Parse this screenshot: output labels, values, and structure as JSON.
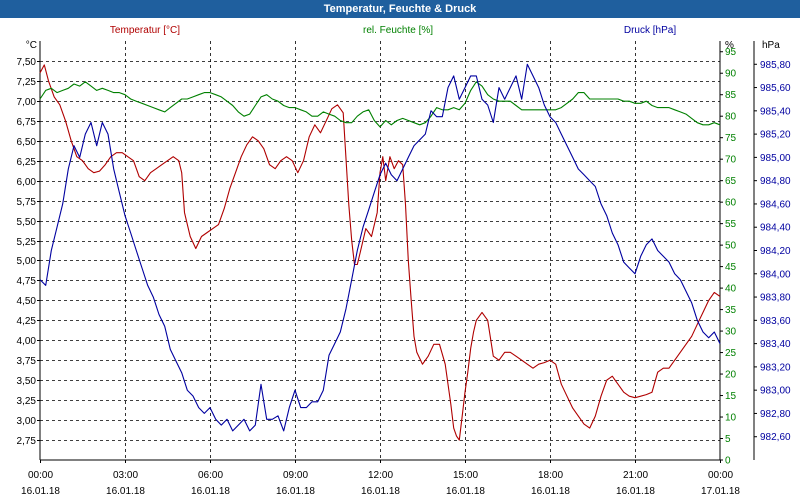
{
  "window": {
    "title": "Temperatur, Feuchte & Druck"
  },
  "colors": {
    "title_bg": "#1f5f9e",
    "temperature": "#b00000",
    "humidity": "#008000",
    "pressure": "#0000a0",
    "grid": "#000000",
    "axis_text": "#000000"
  },
  "chart_data": {
    "type": "line",
    "title": "Temperatur, Feuchte & Druck",
    "x_ticks": [
      {
        "time": "00:00",
        "date": "16.01.18"
      },
      {
        "time": "03:00",
        "date": "16.01.18"
      },
      {
        "time": "06:00",
        "date": "16.01.18"
      },
      {
        "time": "09:00",
        "date": "16.01.18"
      },
      {
        "time": "12:00",
        "date": "16.01.18"
      },
      {
        "time": "15:00",
        "date": "16.01.18"
      },
      {
        "time": "18:00",
        "date": "16.01.18"
      },
      {
        "time": "21:00",
        "date": "16.01.18"
      },
      {
        "time": "00:00",
        "date": "17.01.18"
      }
    ],
    "x_range_hours": [
      0,
      24
    ],
    "y_left": {
      "unit": "°C",
      "range": [
        2.5,
        7.75
      ],
      "ticks": [
        "7,50",
        "7,25",
        "7,00",
        "6,75",
        "6,50",
        "6,25",
        "6,00",
        "5,75",
        "5,50",
        "5,25",
        "5,00",
        "4,75",
        "4,50",
        "4,25",
        "4,00",
        "3,75",
        "3,50",
        "3,25",
        "3,00",
        "2,75"
      ]
    },
    "y_humidity": {
      "unit": "%",
      "range": [
        0,
        97.5
      ],
      "ticks": [
        "95",
        "90",
        "85",
        "80",
        "75",
        "70",
        "65",
        "60",
        "55",
        "50",
        "45",
        "40",
        "35",
        "30",
        "25",
        "20",
        "15",
        "10",
        "5",
        "0"
      ]
    },
    "y_pressure": {
      "unit": "hPa",
      "range": [
        982.4,
        986.0
      ],
      "ticks": [
        "985,80",
        "985,60",
        "985,40",
        "985,20",
        "985,00",
        "984,80",
        "984,60",
        "984,40",
        "984,20",
        "984,00",
        "983,80",
        "983,60",
        "983,40",
        "983,20",
        "983,00",
        "982,80",
        "982,60"
      ]
    },
    "series": [
      {
        "name": "Temperatur [°C]",
        "color": "#b00000",
        "axis": "left",
        "x": [
          0,
          0.15,
          0.3,
          0.5,
          0.7,
          0.9,
          1.1,
          1.3,
          1.5,
          1.7,
          1.9,
          2.1,
          2.3,
          2.5,
          2.7,
          2.9,
          3.1,
          3.3,
          3.5,
          3.7,
          3.9,
          4.1,
          4.3,
          4.5,
          4.7,
          4.9,
          5.0,
          5.1,
          5.3,
          5.5,
          5.7,
          5.9,
          6.1,
          6.3,
          6.5,
          6.7,
          6.9,
          7.1,
          7.3,
          7.5,
          7.7,
          7.9,
          8.1,
          8.3,
          8.5,
          8.7,
          8.9,
          9.1,
          9.3,
          9.5,
          9.7,
          9.9,
          10.1,
          10.3,
          10.5,
          10.7,
          10.9,
          11.0,
          11.1,
          11.2,
          11.3,
          11.5,
          11.7,
          11.9,
          12.0,
          12.1,
          12.2,
          12.35,
          12.5,
          12.65,
          12.8,
          12.9,
          13.0,
          13.1,
          13.2,
          13.3,
          13.5,
          13.7,
          13.9,
          14.1,
          14.3,
          14.5,
          14.6,
          14.7,
          14.8,
          14.9,
          15.0,
          15.1,
          15.2,
          15.3,
          15.4,
          15.6,
          15.8,
          16.0,
          16.2,
          16.4,
          16.6,
          16.8,
          17.0,
          17.2,
          17.4,
          17.6,
          17.8,
          18.0,
          18.2,
          18.4,
          18.6,
          18.8,
          19.0,
          19.2,
          19.4,
          19.6,
          19.8,
          20.0,
          20.2,
          20.4,
          20.6,
          20.8,
          21.0,
          21.2,
          21.4,
          21.6,
          21.8,
          22.0,
          22.2,
          22.4,
          22.6,
          22.8,
          23.0,
          23.2,
          23.4,
          23.6,
          23.8,
          24.0
        ],
        "values": [
          7.35,
          7.45,
          7.25,
          7.05,
          6.95,
          6.75,
          6.5,
          6.3,
          6.25,
          6.15,
          6.1,
          6.12,
          6.2,
          6.3,
          6.35,
          6.35,
          6.3,
          6.25,
          6.05,
          6.0,
          6.1,
          6.15,
          6.2,
          6.25,
          6.3,
          6.25,
          6.1,
          5.6,
          5.3,
          5.15,
          5.3,
          5.35,
          5.4,
          5.45,
          5.65,
          5.9,
          6.1,
          6.3,
          6.45,
          6.55,
          6.5,
          6.4,
          6.2,
          6.15,
          6.25,
          6.3,
          6.25,
          6.1,
          6.25,
          6.55,
          6.7,
          6.6,
          6.75,
          6.9,
          6.95,
          6.85,
          5.7,
          5.25,
          4.95,
          4.95,
          5.1,
          5.4,
          5.3,
          5.6,
          6.1,
          6.3,
          6.0,
          6.3,
          6.15,
          6.25,
          6.2,
          5.7,
          5.0,
          4.5,
          4.05,
          3.85,
          3.7,
          3.8,
          3.95,
          3.95,
          3.7,
          3.2,
          2.9,
          2.8,
          2.75,
          3.05,
          3.35,
          3.6,
          3.9,
          4.1,
          4.25,
          4.35,
          4.25,
          3.8,
          3.75,
          3.85,
          3.85,
          3.8,
          3.75,
          3.7,
          3.65,
          3.7,
          3.72,
          3.75,
          3.7,
          3.45,
          3.3,
          3.15,
          3.05,
          2.95,
          2.9,
          3.05,
          3.3,
          3.5,
          3.55,
          3.45,
          3.35,
          3.3,
          3.28,
          3.3,
          3.32,
          3.35,
          3.6,
          3.65,
          3.65,
          3.75,
          3.85,
          3.95,
          4.05,
          4.2,
          4.35,
          4.5,
          4.6,
          4.55
        ]
      },
      {
        "name": "rel. Feuchte [%]",
        "color": "#008000",
        "axis": "humidity",
        "x": [
          0,
          0.2,
          0.4,
          0.6,
          0.8,
          1.0,
          1.2,
          1.4,
          1.6,
          1.8,
          2.0,
          2.2,
          2.4,
          2.6,
          2.8,
          3.0,
          3.2,
          3.4,
          3.6,
          3.8,
          4.0,
          4.2,
          4.4,
          4.6,
          4.8,
          5.0,
          5.2,
          5.4,
          5.6,
          5.8,
          6.0,
          6.2,
          6.4,
          6.6,
          6.8,
          7.0,
          7.2,
          7.4,
          7.6,
          7.8,
          8.0,
          8.2,
          8.4,
          8.6,
          8.8,
          9.0,
          9.2,
          9.4,
          9.6,
          9.8,
          10.0,
          10.2,
          10.4,
          10.6,
          10.8,
          11.0,
          11.2,
          11.4,
          11.6,
          11.8,
          12.0,
          12.2,
          12.4,
          12.6,
          12.8,
          13.0,
          13.2,
          13.4,
          13.6,
          13.8,
          14.0,
          14.2,
          14.4,
          14.6,
          14.8,
          15.0,
          15.2,
          15.4,
          15.6,
          15.8,
          16.0,
          16.2,
          16.4,
          16.6,
          16.8,
          17.0,
          17.2,
          17.4,
          17.6,
          17.8,
          18.0,
          18.2,
          18.4,
          18.6,
          18.8,
          19.0,
          19.2,
          19.4,
          19.6,
          19.8,
          20.0,
          20.2,
          20.4,
          20.6,
          20.8,
          21.0,
          21.2,
          21.4,
          21.6,
          21.8,
          22.0,
          22.2,
          22.4,
          22.6,
          22.8,
          23.0,
          23.2,
          23.4,
          23.6,
          23.8,
          24.0
        ],
        "values": [
          84,
          86,
          86.5,
          85.5,
          86,
          86.5,
          87.5,
          87,
          88,
          87,
          86,
          86.5,
          86,
          85.5,
          85.5,
          85,
          84,
          83.5,
          83,
          82.5,
          82,
          81.5,
          81,
          82,
          83,
          84,
          84,
          84.5,
          85,
          85.5,
          85.5,
          85,
          84.5,
          83.5,
          82.5,
          81,
          80,
          80.5,
          82.5,
          84.5,
          85,
          84,
          83.5,
          82.5,
          82,
          82,
          81.5,
          81,
          80,
          80,
          81,
          80.5,
          80,
          79,
          78.5,
          78.5,
          80,
          81,
          81.5,
          79,
          77.5,
          79,
          78,
          79,
          79.5,
          79,
          78.5,
          78,
          78.5,
          80,
          82,
          81.5,
          81.5,
          82,
          81.5,
          83,
          86,
          88,
          87,
          85,
          84,
          83.5,
          83.5,
          83.5,
          82.5,
          81.5,
          81.5,
          81.5,
          81.5,
          81.5,
          81.5,
          81.5,
          82,
          83,
          84,
          85.5,
          85.5,
          84,
          84,
          84,
          84,
          84,
          84,
          83.5,
          83.5,
          83,
          83,
          83.5,
          82.5,
          82,
          82,
          82,
          81.5,
          81,
          80.5,
          79.5,
          78.5,
          78,
          78,
          78.5,
          78
        ]
      },
      {
        "name": "Druck [hPa]",
        "color": "#0000a0",
        "axis": "pressure",
        "x": [
          0,
          0.2,
          0.4,
          0.6,
          0.8,
          1.0,
          1.2,
          1.4,
          1.6,
          1.8,
          2.0,
          2.2,
          2.4,
          2.6,
          2.8,
          3.0,
          3.2,
          3.4,
          3.6,
          3.8,
          4.0,
          4.2,
          4.4,
          4.6,
          4.8,
          5.0,
          5.2,
          5.4,
          5.6,
          5.8,
          6.0,
          6.2,
          6.4,
          6.6,
          6.8,
          7.0,
          7.2,
          7.4,
          7.6,
          7.8,
          8.0,
          8.2,
          8.4,
          8.6,
          8.8,
          9.0,
          9.2,
          9.4,
          9.6,
          9.8,
          10.0,
          10.2,
          10.4,
          10.6,
          10.8,
          11.0,
          11.2,
          11.4,
          11.6,
          11.8,
          12.0,
          12.2,
          12.4,
          12.6,
          12.8,
          13.0,
          13.2,
          13.4,
          13.6,
          13.8,
          14.0,
          14.2,
          14.4,
          14.6,
          14.8,
          15.0,
          15.2,
          15.4,
          15.6,
          15.8,
          16.0,
          16.2,
          16.4,
          16.6,
          16.8,
          17.0,
          17.2,
          17.4,
          17.6,
          17.8,
          18.0,
          18.2,
          18.4,
          18.6,
          18.8,
          19.0,
          19.2,
          19.4,
          19.6,
          19.8,
          20.0,
          20.2,
          20.4,
          20.6,
          20.8,
          21.0,
          21.2,
          21.4,
          21.6,
          21.8,
          22.0,
          22.2,
          22.4,
          22.6,
          22.8,
          23.0,
          23.2,
          23.4,
          23.6,
          23.8,
          24.0
        ],
        "values": [
          983.95,
          983.9,
          984.2,
          984.4,
          984.6,
          984.9,
          985.1,
          985.0,
          985.2,
          985.3,
          985.1,
          985.3,
          985.2,
          984.9,
          984.7,
          984.5,
          984.35,
          984.2,
          984.05,
          983.9,
          983.8,
          983.65,
          983.55,
          983.35,
          983.25,
          983.15,
          983.0,
          982.95,
          982.85,
          982.8,
          982.85,
          982.75,
          982.7,
          982.75,
          982.65,
          982.7,
          982.75,
          982.65,
          982.7,
          983.05,
          982.75,
          982.75,
          982.78,
          982.65,
          982.85,
          983.0,
          982.85,
          982.85,
          982.9,
          982.9,
          983.0,
          983.3,
          983.4,
          983.5,
          983.7,
          983.95,
          984.2,
          984.4,
          984.55,
          984.7,
          984.85,
          984.95,
          984.85,
          984.8,
          984.9,
          985.0,
          985.1,
          985.15,
          985.2,
          985.4,
          985.35,
          985.35,
          985.6,
          985.7,
          985.5,
          985.6,
          985.7,
          985.7,
          985.5,
          985.45,
          985.3,
          985.6,
          985.5,
          985.6,
          985.7,
          985.5,
          985.8,
          985.7,
          985.6,
          985.45,
          985.35,
          985.3,
          985.2,
          985.1,
          985.0,
          984.9,
          984.85,
          984.8,
          984.75,
          984.6,
          984.5,
          984.35,
          984.25,
          984.1,
          984.05,
          984.0,
          984.15,
          984.25,
          984.3,
          984.2,
          984.15,
          984.1,
          984.0,
          983.95,
          983.85,
          983.75,
          983.6,
          983.5,
          983.45,
          983.5,
          983.4
        ]
      }
    ]
  }
}
